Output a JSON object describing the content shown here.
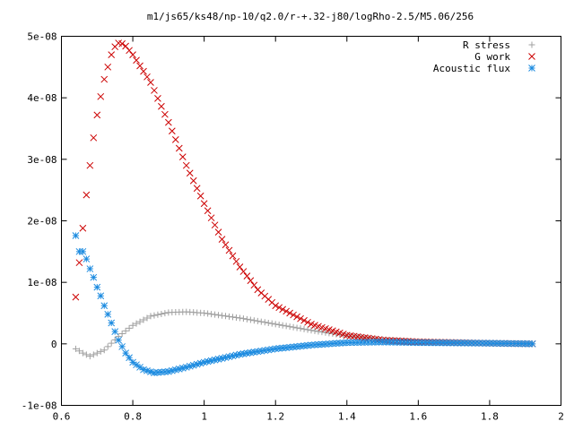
{
  "chart_data": {
    "type": "scatter",
    "title": "m1/js65/ks48/np-10/q2.0/r-+.32-j80/logRho-2.5/M5.06/256",
    "xlabel": "",
    "ylabel": "",
    "xlim": [
      0.6,
      2.0
    ],
    "ylim": [
      -1e-08,
      5e-08
    ],
    "x_ticks": [
      {
        "v": 0.6,
        "label": "0.6"
      },
      {
        "v": 0.8,
        "label": "0.8"
      },
      {
        "v": 1.0,
        "label": "1"
      },
      {
        "v": 1.2,
        "label": "1.2"
      },
      {
        "v": 1.4,
        "label": "1.4"
      },
      {
        "v": 1.6,
        "label": "1.6"
      },
      {
        "v": 1.8,
        "label": "1.8"
      },
      {
        "v": 2.0,
        "label": "2"
      }
    ],
    "y_ticks": [
      {
        "v": -1e-08,
        "label": "-1e-08"
      },
      {
        "v": 0,
        "label": "0"
      },
      {
        "v": 1e-08,
        "label": "1e-08"
      },
      {
        "v": 2e-08,
        "label": "2e-08"
      },
      {
        "v": 3e-08,
        "label": "3e-08"
      },
      {
        "v": 4e-08,
        "label": "4e-08"
      },
      {
        "v": 5e-08,
        "label": "5e-08"
      }
    ],
    "grid": false,
    "legend_position": "top-right",
    "x_range": [
      0.64,
      1.92
    ],
    "n_points": 129,
    "series": [
      {
        "name": "R stress",
        "marker": "plus",
        "color": "#a0a0a0",
        "curve": [
          [
            0.64,
            -8e-10
          ],
          [
            0.66,
            -1.5e-09
          ],
          [
            0.68,
            -2e-09
          ],
          [
            0.72,
            -1e-09
          ],
          [
            0.76,
            1.2e-09
          ],
          [
            0.8,
            3e-09
          ],
          [
            0.85,
            4.5e-09
          ],
          [
            0.9,
            5.1e-09
          ],
          [
            0.95,
            5.2e-09
          ],
          [
            1.0,
            5e-09
          ],
          [
            1.1,
            4.2e-09
          ],
          [
            1.2,
            3.2e-09
          ],
          [
            1.3,
            2.2e-09
          ],
          [
            1.4,
            1.3e-09
          ],
          [
            1.5,
            7e-10
          ],
          [
            1.6,
            4e-10
          ],
          [
            1.8,
            1e-10
          ],
          [
            1.92,
            0.0
          ]
        ]
      },
      {
        "name": "G work",
        "marker": "cross",
        "color": "#cc0000",
        "curve": [
          [
            0.64,
            7.6e-09
          ],
          [
            0.65,
            1.32e-08
          ],
          [
            0.66,
            1.88e-08
          ],
          [
            0.67,
            2.42e-08
          ],
          [
            0.68,
            2.9e-08
          ],
          [
            0.69,
            3.35e-08
          ],
          [
            0.7,
            3.72e-08
          ],
          [
            0.71,
            4.02e-08
          ],
          [
            0.72,
            4.3e-08
          ],
          [
            0.73,
            4.5e-08
          ],
          [
            0.74,
            4.7e-08
          ],
          [
            0.75,
            4.83e-08
          ],
          [
            0.76,
            4.89e-08
          ],
          [
            0.77,
            4.88e-08
          ],
          [
            0.78,
            4.84e-08
          ],
          [
            0.8,
            4.7e-08
          ],
          [
            0.85,
            4.25e-08
          ],
          [
            0.9,
            3.6e-08
          ],
          [
            0.95,
            2.9e-08
          ],
          [
            1.0,
            2.28e-08
          ],
          [
            1.05,
            1.7e-08
          ],
          [
            1.1,
            1.25e-08
          ],
          [
            1.15,
            8.8e-09
          ],
          [
            1.2,
            6.2e-09
          ],
          [
            1.3,
            3.2e-09
          ],
          [
            1.4,
            1.4e-09
          ],
          [
            1.5,
            6e-10
          ],
          [
            1.6,
            3e-10
          ],
          [
            1.8,
            1e-10
          ],
          [
            1.92,
            0.0
          ]
        ]
      },
      {
        "name": "Acoustic flux",
        "marker": "star",
        "color": "#1c8be0",
        "curve": [
          [
            0.64,
            1.76e-08
          ],
          [
            0.65,
            1.5e-08
          ],
          [
            0.66,
            1.5e-08
          ],
          [
            0.67,
            1.38e-08
          ],
          [
            0.68,
            1.22e-08
          ],
          [
            0.69,
            1.08e-08
          ],
          [
            0.7,
            9.2e-09
          ],
          [
            0.71,
            7.8e-09
          ],
          [
            0.72,
            6.2e-09
          ],
          [
            0.73,
            4.8e-09
          ],
          [
            0.74,
            3.4e-09
          ],
          [
            0.75,
            2e-09
          ],
          [
            0.76,
            6e-10
          ],
          [
            0.78,
            -1.5e-09
          ],
          [
            0.8,
            -3e-09
          ],
          [
            0.83,
            -4.2e-09
          ],
          [
            0.86,
            -4.7e-09
          ],
          [
            0.9,
            -4.5e-09
          ],
          [
            0.95,
            -3.8e-09
          ],
          [
            1.0,
            -3e-09
          ],
          [
            1.1,
            -1.7e-09
          ],
          [
            1.2,
            -8e-10
          ],
          [
            1.3,
            -2e-10
          ],
          [
            1.4,
            2e-10
          ],
          [
            1.5,
            3e-10
          ],
          [
            1.6,
            2e-10
          ],
          [
            1.8,
            1e-10
          ],
          [
            1.92,
            0.0
          ]
        ]
      }
    ]
  }
}
